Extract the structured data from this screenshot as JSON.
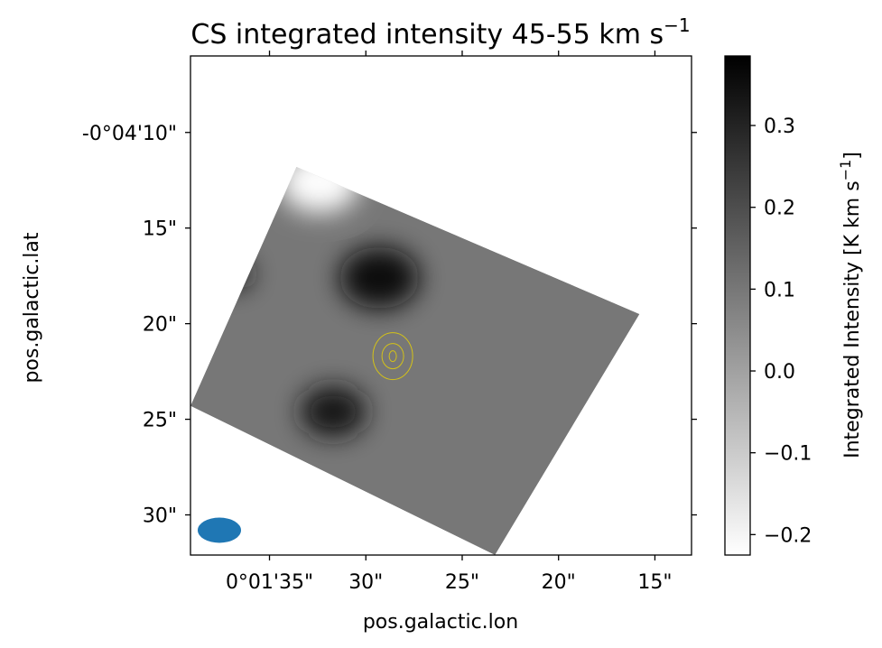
{
  "chart_data": {
    "type": "heatmap",
    "title": "CS integrated intensity 45-55 km s",
    "title_superscript": "−1",
    "xlabel": "pos.galactic.lon",
    "ylabel": "pos.galactic.lat",
    "x_ticks": [
      {
        "label": "0°01'35\"",
        "value_arcsec": 95
      },
      {
        "label": "30\"",
        "value_arcsec": 90
      },
      {
        "label": "25\"",
        "value_arcsec": 85
      },
      {
        "label": "20\"",
        "value_arcsec": 80
      },
      {
        "label": "15\"",
        "value_arcsec": 75
      }
    ],
    "y_ticks": [
      {
        "label": "-0°04'10\"",
        "value_arcsec": -250
      },
      {
        "label": "15\"",
        "value_arcsec": -255
      },
      {
        "label": "20\"",
        "value_arcsec": -260
      },
      {
        "label": "25\"",
        "value_arcsec": -265
      },
      {
        "label": "30\"",
        "value_arcsec": -270
      }
    ],
    "xlim_arcsec": [
      99.1,
      73.1
    ],
    "ylim_arcsec": [
      -246.0,
      -272.1
    ],
    "colorbar": {
      "label": "Integrated Intensity [K km s",
      "label_superscript": "−1",
      "label_suffix": "]",
      "min": -0.225,
      "max": 0.385,
      "ticks": [
        "0.3",
        "0.2",
        "0.1",
        "0.0",
        "−0.1",
        "−0.2"
      ],
      "tick_values": [
        0.3,
        0.2,
        0.1,
        0.0,
        -0.1,
        -0.2
      ],
      "colormap": "gray_r"
    },
    "map_footprint_arcsec": [
      {
        "lon": 93.6,
        "lat": -251.8
      },
      {
        "lon": 75.8,
        "lat": -259.5
      },
      {
        "lon": 83.3,
        "lat": -272.1
      },
      {
        "lon": 99.1,
        "lat": -264.3
      }
    ],
    "features": [
      {
        "name": "bright emission peak",
        "lon": 89.3,
        "lat": -257.6,
        "value": 0.35
      },
      {
        "name": "emission ridge",
        "lon": 96.9,
        "lat": -257.4,
        "value": 0.34
      },
      {
        "name": "emission blob",
        "lon": 91.7,
        "lat": -264.6,
        "value": 0.33
      },
      {
        "name": "negative region",
        "lon": 92.4,
        "lat": -252.6,
        "value": -0.22
      }
    ],
    "contours": {
      "color": "#d4c218",
      "center_lon": 88.6,
      "center_lat": -261.7,
      "levels": 3
    },
    "beam": {
      "color": "#1f77b4",
      "lon": 97.6,
      "lat": -270.8
    }
  }
}
